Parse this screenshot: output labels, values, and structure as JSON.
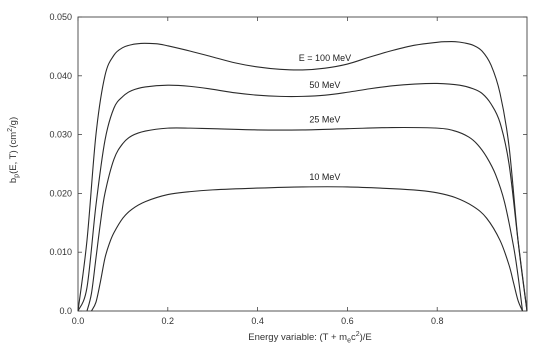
{
  "chart_data": {
    "type": "line",
    "title": "",
    "xlabel_main": "Energy variable: (T + m",
    "xlabel_sub": "e",
    "xlabel_mid": "c",
    "xlabel_sup": "2",
    "xlabel_tail": ")/E",
    "ylabel_main": "b",
    "ylabel_sub": "p",
    "ylabel_mid": "(E, T) (cm",
    "ylabel_sup": "2",
    "ylabel_tail": "/g)",
    "xlim": [
      0.0,
      1.0
    ],
    "ylim": [
      0.0,
      0.05
    ],
    "x_ticks": [
      "0.0",
      "0.2",
      "0.4",
      "0.6",
      "0.8"
    ],
    "y_ticks": [
      "0.0",
      "0.010",
      "0.020",
      "0.030",
      "0.040",
      "0.050"
    ],
    "grid": false,
    "series": [
      {
        "name": "E = 100 MeV",
        "x": [
          0.0,
          0.02,
          0.04,
          0.06,
          0.08,
          0.1,
          0.12,
          0.14,
          0.16,
          0.18,
          0.2,
          0.25,
          0.3,
          0.35,
          0.4,
          0.45,
          0.5,
          0.55,
          0.6,
          0.65,
          0.7,
          0.75,
          0.8,
          0.82,
          0.84,
          0.86,
          0.88,
          0.9,
          0.92,
          0.94,
          0.96,
          0.98,
          1.0
        ],
        "values": [
          0.0,
          0.012,
          0.03,
          0.04,
          0.0435,
          0.0448,
          0.0453,
          0.0455,
          0.0455,
          0.0454,
          0.0451,
          0.0442,
          0.0432,
          0.0422,
          0.0415,
          0.0411,
          0.041,
          0.0413,
          0.042,
          0.0432,
          0.0443,
          0.0452,
          0.0457,
          0.0458,
          0.0458,
          0.0456,
          0.0452,
          0.0442,
          0.0418,
          0.037,
          0.028,
          0.012,
          0.0
        ]
      },
      {
        "name": "50 MeV",
        "x": [
          0.0,
          0.02,
          0.04,
          0.06,
          0.08,
          0.1,
          0.12,
          0.15,
          0.2,
          0.25,
          0.3,
          0.35,
          0.4,
          0.45,
          0.5,
          0.55,
          0.6,
          0.65,
          0.7,
          0.75,
          0.8,
          0.85,
          0.88,
          0.9,
          0.92,
          0.94,
          0.96,
          0.98,
          1.0
        ],
        "values": [
          0.0,
          0.004,
          0.018,
          0.029,
          0.0345,
          0.0365,
          0.0375,
          0.0381,
          0.0384,
          0.0382,
          0.0377,
          0.0371,
          0.0367,
          0.0365,
          0.0365,
          0.0367,
          0.0372,
          0.0378,
          0.0383,
          0.0386,
          0.0387,
          0.0384,
          0.0378,
          0.037,
          0.0352,
          0.032,
          0.025,
          0.012,
          0.0
        ]
      },
      {
        "name": "25 MeV",
        "x": [
          0.02,
          0.03,
          0.04,
          0.05,
          0.06,
          0.08,
          0.1,
          0.12,
          0.15,
          0.2,
          0.25,
          0.3,
          0.4,
          0.5,
          0.6,
          0.7,
          0.8,
          0.84,
          0.87,
          0.89,
          0.91,
          0.93,
          0.95,
          0.97,
          0.98,
          0.99
        ],
        "values": [
          0.0,
          0.003,
          0.009,
          0.015,
          0.02,
          0.0258,
          0.0285,
          0.0298,
          0.0306,
          0.0311,
          0.0311,
          0.031,
          0.0308,
          0.0308,
          0.031,
          0.0312,
          0.0311,
          0.0306,
          0.0296,
          0.0283,
          0.0262,
          0.0232,
          0.0185,
          0.011,
          0.006,
          0.0
        ]
      },
      {
        "name": "10 MeV",
        "x": [
          0.03,
          0.04,
          0.05,
          0.06,
          0.07,
          0.08,
          0.1,
          0.12,
          0.15,
          0.2,
          0.25,
          0.3,
          0.4,
          0.5,
          0.6,
          0.7,
          0.76,
          0.8,
          0.84,
          0.88,
          0.91,
          0.94,
          0.96,
          0.97,
          0.98,
          0.99
        ],
        "values": [
          0.0,
          0.0015,
          0.005,
          0.009,
          0.0115,
          0.0133,
          0.0158,
          0.0173,
          0.0186,
          0.0198,
          0.0203,
          0.0206,
          0.0209,
          0.0211,
          0.0211,
          0.0208,
          0.0205,
          0.0201,
          0.0193,
          0.0178,
          0.0158,
          0.012,
          0.0078,
          0.0048,
          0.0018,
          0.0
        ]
      }
    ]
  }
}
